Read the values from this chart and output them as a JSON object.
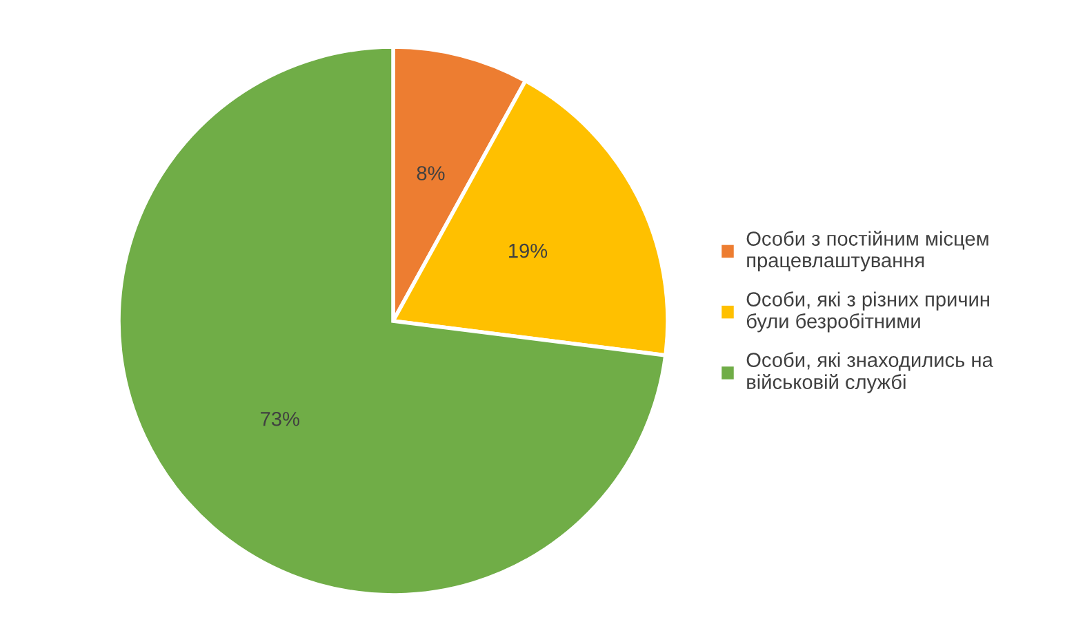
{
  "chart_data": {
    "type": "pie",
    "categories": [
      "Особи з постійним місцем працевлаштування",
      "Особи, які з різних причин були безробітними",
      "Особи, які знаходились на військовій службі"
    ],
    "values": [
      8,
      19,
      73
    ],
    "colors": [
      "#ed7d31",
      "#ffc000",
      "#70ad47"
    ],
    "value_labels": [
      "8%",
      "19%",
      "73%"
    ],
    "legend": "right"
  }
}
